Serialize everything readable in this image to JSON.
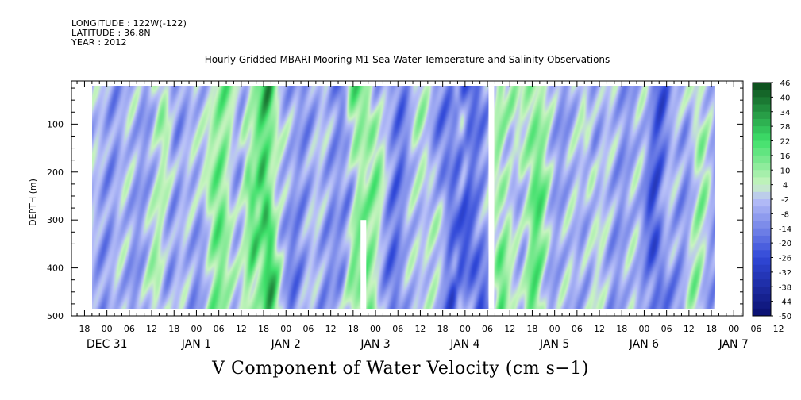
{
  "header": {
    "longitude": "LONGITUDE : 122W(-122)",
    "latitude": "LATITUDE : 36.8N",
    "year": "YEAR : 2012"
  },
  "chart_data": {
    "type": "heatmap",
    "title": "Hourly Gridded MBARI Mooring M1 Sea Water Temperature and Salinity Observations",
    "variable_label": "V Component of Water Velocity (cm s−1)",
    "ylabel": "DEPTH (m)",
    "y_ticks": [
      "100",
      "200",
      "300",
      "400",
      "500"
    ],
    "ylim": [
      10,
      500
    ],
    "x_hour_ticks": [
      "18",
      "00",
      "06",
      "12",
      "18",
      "00",
      "06",
      "12",
      "18",
      "00",
      "06",
      "12",
      "18",
      "00",
      "06",
      "12",
      "18",
      "00",
      "06",
      "12",
      "18",
      "00",
      "06",
      "12",
      "18",
      "00",
      "06",
      "12",
      "18",
      "00",
      "06",
      "12"
    ],
    "x_day_labels": [
      "DEC 31",
      "JAN  1",
      "JAN  2",
      "JAN  3",
      "JAN  4",
      "JAN  5",
      "JAN  6",
      "JAN  7"
    ],
    "data_time_range_hours": [
      -4,
      163
    ],
    "data_depth_range": [
      20,
      485
    ],
    "gaps": [
      {
        "start_hour": 68,
        "end_hour": 69.5,
        "depth_from": 300,
        "depth_to": 485
      },
      {
        "start_hour": 67.8,
        "end_hour": 69.2,
        "depth_from": 10,
        "depth_to": 20
      },
      {
        "start_hour": 102.3,
        "end_hour": 103.8,
        "depth_from": 20,
        "depth_to": 485
      }
    ],
    "colorbar": {
      "levels": [
        "46",
        "40",
        "34",
        "28",
        "22",
        "16",
        "10",
        "4",
        "-2",
        "-8",
        "-14",
        "-20",
        "-26",
        "-32",
        "-38",
        "-44",
        "-50"
      ],
      "min": -50,
      "max": 46,
      "step": 3
    },
    "colors": {
      "neg_strong": "#0a0f6e",
      "neg_mid": "#3048d8",
      "neg_weak": "#b8c0f8",
      "pos_weak": "#c8f4c0",
      "pos_mid": "#3ee06a",
      "pos_strong": "#0b4a1a"
    }
  }
}
